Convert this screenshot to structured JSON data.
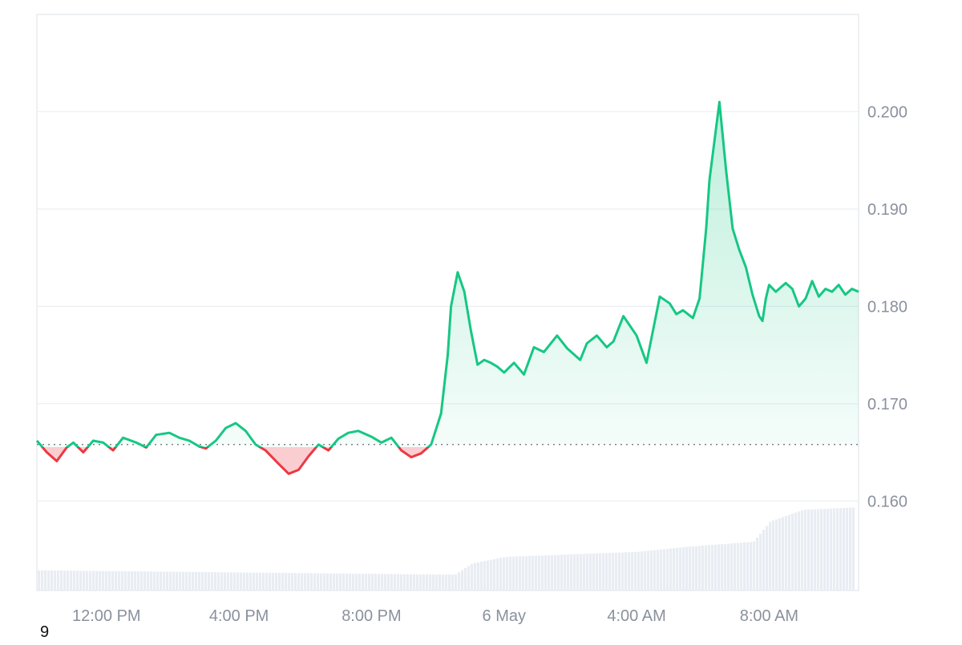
{
  "chart_data": {
    "type": "area",
    "baseline": 0.1658,
    "ylim": [
      0.1508,
      0.21
    ],
    "y_ticks": [
      0.16,
      0.17,
      0.18,
      0.19,
      0.2
    ],
    "y_tick_labels": [
      "0.160",
      "0.170",
      "0.180",
      "0.190",
      "0.200"
    ],
    "x_tick_labels": [
      "12:00 PM",
      "4:00 PM",
      "8:00 PM",
      "6 May",
      "4:00 AM",
      "8:00 AM"
    ],
    "x_tick_hours": [
      12,
      16,
      20,
      24,
      28,
      32
    ],
    "x_range_hours": [
      9.9,
      34.7
    ],
    "grid": true,
    "colors": {
      "up": "#16c784",
      "down": "#ea3943",
      "grid": "#eceef2",
      "axis_text": "#8a919e",
      "volume": "#e9edf3"
    },
    "price": {
      "hours": [
        9.9,
        10.2,
        10.5,
        10.8,
        11.0,
        11.3,
        11.6,
        11.9,
        12.2,
        12.5,
        12.9,
        13.2,
        13.5,
        13.9,
        14.2,
        14.5,
        14.8,
        15.0,
        15.3,
        15.6,
        15.9,
        16.2,
        16.5,
        16.8,
        17.2,
        17.5,
        17.8,
        18.1,
        18.4,
        18.7,
        19.0,
        19.3,
        19.6,
        20.0,
        20.3,
        20.6,
        20.9,
        21.2,
        21.5,
        21.8,
        22.1,
        22.3,
        22.4,
        22.6,
        22.8,
        23.0,
        23.2,
        23.4,
        23.6,
        23.8,
        24.0,
        24.3,
        24.6,
        24.9,
        25.2,
        25.6,
        25.9,
        26.3,
        26.5,
        26.8,
        27.1,
        27.3,
        27.6,
        28.0,
        28.3,
        28.7,
        29.0,
        29.2,
        29.4,
        29.7,
        29.9,
        30.1,
        30.2,
        30.5,
        30.7,
        30.9,
        31.1,
        31.3,
        31.5,
        31.7,
        31.8,
        31.9,
        32.0,
        32.2,
        32.5,
        32.7,
        32.9,
        33.1,
        33.3,
        33.5,
        33.7,
        33.9,
        34.1,
        34.3,
        34.5,
        34.7
      ],
      "values": [
        0.1662,
        0.165,
        0.1641,
        0.1655,
        0.166,
        0.165,
        0.1662,
        0.166,
        0.1652,
        0.1665,
        0.166,
        0.1655,
        0.1668,
        0.167,
        0.1665,
        0.1662,
        0.1656,
        0.1654,
        0.1662,
        0.1675,
        0.168,
        0.1672,
        0.1658,
        0.1652,
        0.1638,
        0.1628,
        0.1632,
        0.1646,
        0.1658,
        0.1652,
        0.1664,
        0.167,
        0.1672,
        0.1666,
        0.166,
        0.1665,
        0.1652,
        0.1645,
        0.1649,
        0.1658,
        0.169,
        0.175,
        0.18,
        0.1835,
        0.1815,
        0.1775,
        0.174,
        0.1745,
        0.1742,
        0.1738,
        0.1732,
        0.1742,
        0.173,
        0.1758,
        0.1753,
        0.177,
        0.1757,
        0.1745,
        0.1762,
        0.177,
        0.1758,
        0.1764,
        0.179,
        0.177,
        0.1742,
        0.181,
        0.1803,
        0.1792,
        0.1796,
        0.1788,
        0.1808,
        0.188,
        0.193,
        0.201,
        0.194,
        0.188,
        0.1858,
        0.184,
        0.1812,
        0.179,
        0.1785,
        0.1808,
        0.1822,
        0.1815,
        0.1824,
        0.1818,
        0.18,
        0.1808,
        0.1826,
        0.181,
        0.1818,
        0.1815,
        0.1822,
        0.1812,
        0.1818,
        0.1815
      ]
    },
    "volume": {
      "hours": [
        9.9,
        22.0,
        22.5,
        23.0,
        24.0,
        26.0,
        28.0,
        29.5,
        30.5,
        31.5,
        32.0,
        33.0,
        34.7
      ],
      "level": [
        0.24,
        0.19,
        0.19,
        0.32,
        0.4,
        0.43,
        0.46,
        0.52,
        0.55,
        0.58,
        0.82,
        0.96,
        0.99
      ]
    }
  },
  "footer": {
    "corner_label": "9"
  }
}
